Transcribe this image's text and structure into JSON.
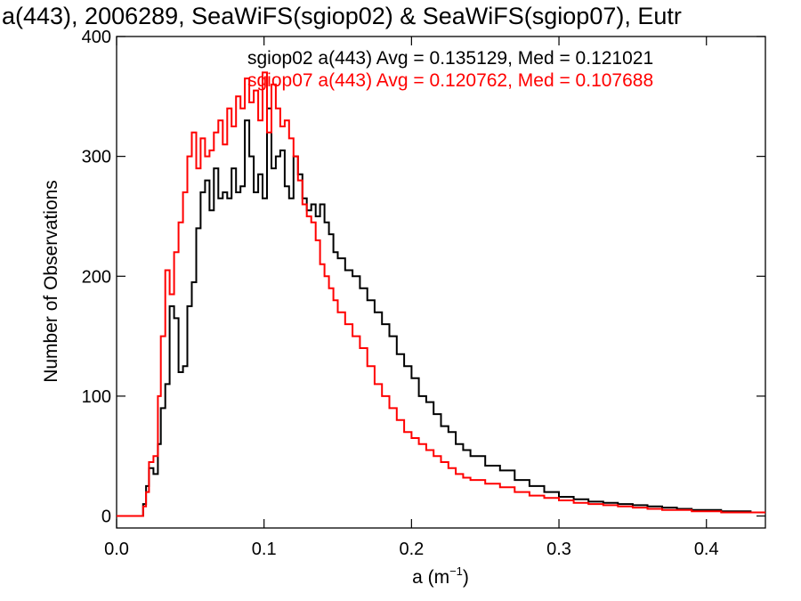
{
  "chart_data": {
    "type": "line",
    "title": "a(443), 2006289, SeaWiFS(sgiop02) & SeaWiFS(sgiop07), Eutr",
    "xlabel_base": "a (m",
    "xlabel_sup": "−1",
    "xlabel_close": ")",
    "ylabel": "Number of Observations",
    "xlim": [
      0.0,
      0.44
    ],
    "ylim": [
      -10,
      400
    ],
    "x_ticks": [
      0.0,
      0.1,
      0.2,
      0.3,
      0.4
    ],
    "x_tick_labels": [
      "0.0",
      "0.1",
      "0.2",
      "0.3",
      "0.4"
    ],
    "y_ticks": [
      0,
      100,
      200,
      300,
      400
    ],
    "y_tick_labels": [
      "0",
      "100",
      "200",
      "300",
      "400"
    ],
    "grid": false,
    "series": [
      {
        "name": "sgiop02",
        "color": "#000000",
        "annotation": "sgiop02 a(443) Avg = 0.135129, Med = 0.121021",
        "x": [
          0.0,
          0.015,
          0.018,
          0.02,
          0.022,
          0.025,
          0.028,
          0.03,
          0.033,
          0.036,
          0.039,
          0.042,
          0.045,
          0.048,
          0.051,
          0.054,
          0.057,
          0.06,
          0.063,
          0.066,
          0.069,
          0.072,
          0.075,
          0.078,
          0.081,
          0.084,
          0.087,
          0.09,
          0.093,
          0.096,
          0.099,
          0.102,
          0.105,
          0.108,
          0.111,
          0.114,
          0.117,
          0.12,
          0.123,
          0.126,
          0.129,
          0.132,
          0.135,
          0.138,
          0.141,
          0.144,
          0.147,
          0.15,
          0.155,
          0.16,
          0.165,
          0.17,
          0.175,
          0.18,
          0.185,
          0.19,
          0.195,
          0.2,
          0.205,
          0.21,
          0.215,
          0.22,
          0.225,
          0.23,
          0.235,
          0.24,
          0.25,
          0.26,
          0.27,
          0.28,
          0.29,
          0.3,
          0.31,
          0.32,
          0.33,
          0.34,
          0.35,
          0.36,
          0.37,
          0.38,
          0.39,
          0.4,
          0.41,
          0.42,
          0.43,
          0.44
        ],
        "y": [
          0,
          0,
          10,
          25,
          40,
          35,
          60,
          90,
          110,
          175,
          165,
          120,
          125,
          175,
          195,
          240,
          270,
          280,
          255,
          290,
          265,
          270,
          265,
          290,
          270,
          275,
          330,
          300,
          270,
          285,
          265,
          340,
          290,
          300,
          305,
          275,
          265,
          300,
          285,
          265,
          255,
          260,
          250,
          260,
          245,
          235,
          220,
          215,
          205,
          200,
          190,
          180,
          170,
          160,
          150,
          135,
          125,
          115,
          100,
          95,
          85,
          75,
          70,
          60,
          55,
          50,
          42,
          38,
          30,
          25,
          20,
          16,
          14,
          12,
          11,
          10,
          9,
          8,
          7,
          6,
          5,
          5,
          4,
          4,
          3,
          3
        ]
      },
      {
        "name": "sgiop07",
        "color": "#ff0000",
        "annotation": "sgiop07 a(443) Avg = 0.120762, Med = 0.107688",
        "x": [
          0.0,
          0.015,
          0.018,
          0.02,
          0.022,
          0.025,
          0.028,
          0.03,
          0.033,
          0.036,
          0.039,
          0.042,
          0.045,
          0.048,
          0.051,
          0.054,
          0.057,
          0.06,
          0.063,
          0.066,
          0.069,
          0.072,
          0.075,
          0.078,
          0.081,
          0.084,
          0.087,
          0.09,
          0.093,
          0.096,
          0.099,
          0.102,
          0.105,
          0.108,
          0.111,
          0.114,
          0.117,
          0.12,
          0.123,
          0.126,
          0.129,
          0.132,
          0.135,
          0.138,
          0.141,
          0.144,
          0.147,
          0.15,
          0.155,
          0.16,
          0.165,
          0.17,
          0.175,
          0.18,
          0.185,
          0.19,
          0.195,
          0.2,
          0.205,
          0.21,
          0.215,
          0.22,
          0.225,
          0.23,
          0.235,
          0.24,
          0.25,
          0.26,
          0.27,
          0.28,
          0.29,
          0.3,
          0.31,
          0.32,
          0.33,
          0.34,
          0.35,
          0.36,
          0.37,
          0.38,
          0.39,
          0.4,
          0.41,
          0.42,
          0.43,
          0.44
        ],
        "y": [
          0,
          0,
          8,
          20,
          45,
          50,
          100,
          150,
          205,
          185,
          220,
          245,
          270,
          300,
          320,
          290,
          315,
          300,
          305,
          320,
          330,
          310,
          340,
          325,
          350,
          340,
          365,
          345,
          355,
          330,
          370,
          320,
          360,
          340,
          325,
          330,
          315,
          300,
          280,
          260,
          250,
          245,
          230,
          210,
          200,
          190,
          180,
          170,
          160,
          150,
          140,
          125,
          110,
          100,
          90,
          80,
          70,
          65,
          60,
          55,
          50,
          45,
          40,
          35,
          32,
          30,
          27,
          24,
          20,
          17,
          15,
          13,
          11,
          10,
          9,
          8,
          7,
          6,
          5,
          5,
          4,
          4,
          3,
          3,
          3,
          3
        ]
      }
    ]
  }
}
